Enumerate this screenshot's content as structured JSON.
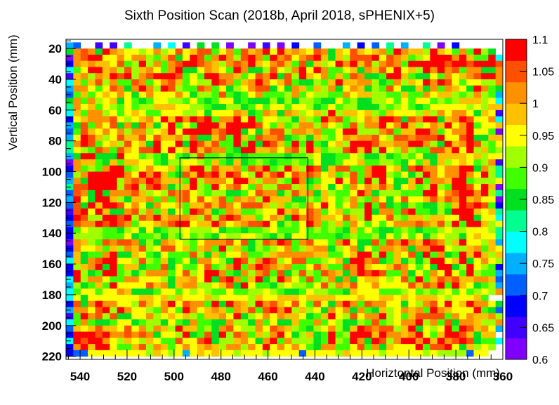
{
  "chart_data": {
    "type": "heatmap",
    "title": "Sixth Position Scan (2018b, April 2018, sPHENIX+5)",
    "xlabel": "Horiztontal Position (mm)",
    "ylabel": "Vertical Position (mm)",
    "x_axis": {
      "reversed": true,
      "range": [
        546,
        360
      ],
      "ticks": [
        540,
        520,
        500,
        480,
        460,
        440,
        420,
        400,
        380,
        360
      ]
    },
    "y_axis": {
      "reversed": true,
      "range": [
        14,
        222
      ],
      "ticks": [
        20,
        40,
        60,
        80,
        100,
        120,
        140,
        160,
        180,
        200,
        220
      ]
    },
    "color_scale": {
      "min": 0.6,
      "max": 1.1,
      "ticks": [
        "0.6",
        "0.65",
        "0.7",
        "0.75",
        "0.8",
        "0.85",
        "0.9",
        "0.95",
        "1",
        "1.05",
        "1.1"
      ],
      "palette": [
        "#8000ff",
        "#4000ff",
        "#0000ff",
        "#0060ff",
        "#00b0ff",
        "#00ffff",
        "#00ff90",
        "#00e020",
        "#40ff00",
        "#a0ff00",
        "#ffff00",
        "#ffc000",
        "#ff9000",
        "#ff5000",
        "#ff0000"
      ]
    },
    "grid": false,
    "grid_bins": {
      "x_start": 546,
      "x_step": 3.1,
      "nx": 60,
      "y_start": 16,
      "y_step": 4,
      "ny": 51
    },
    "rows": [
      "RN..F.F.W...P.U.G.Y.Z.C..D.G.B.J..M...O.J.N.V.R..W.A.K.....",
      "ZqvrbwqnkjgjphltjmvtdkqeunrxizoqoktqanjvoimscxsmnfynjdpcwgZ.",
      "CqvwxllqkrsgdntbiwvdrxqhuxsdxrtkrtwmbngvttwiuqncgjzwzsymcewS",
      "Jpnsomjvegygsdqtyzvsnfqtrwmjsvmcubmgkyrwmvgpvqcwxxzwuwyuywzt",
      "Sdiwznpgufnqidpwbbksmldxqbagujfpwiypedlnbqotlzjofwszptcqpbbr",
      "Fmsgqowvwhstyyztcjcwysqmdjtqxbvfznjqcmdtsaaexznebbkcsknsvwwr",
      "Umcmvgpcetpdlpumcjffwvqdnqzrimuebahenwnnrqhadrfmkwrytkdkkghr",
      "OpqjcjtrbqwsfwufccvqdibfkrtvbibpmdngsbksmbfdukaanapdsojbzpdY",
      "NenelmiqkakqjjkplbgfcuebeipdecfpdigfdepjmnhgeemcepjmmhdgpgcP",
      "ZpcphinbiebejkggdjdbcijaeabbhbhbfgdaaiegabghidjejjcfefmnnglU",
      "Vpjoejfejefhmomjjghcaafhadidjjcjjfaejcghbaahdhicacjiiklglgmo",
      "UmcsqhiekmkccikkhgjbjlisnbcpoapmfjogwgmokohcniiihmfrlpsiaojE",
      "JlnsprtlgkosjxnxsztycrrxjydkigfbmfcxqtehisnxwtbtrxwbnsytjkpS",
      "Obvcpivbpatnajyejezzwmwzyzulcndhrphrkgctfpqyiqyoglpnyjpzdkjm",
      "MdtniqkpfpqflnwlyzzzpuwzblanvufqpmpeeixxhhhsvdnoyyrclqsyjjeA",
      "Okxtmfkvomuktonqgvbbotdzodvsqtadfbofekrmppvlhvtqutvxkjvxaboo",
      "Wqwucjnhvkoawkjxbxvnvcdwczbztncxdxdbjnfzyyunnqpxxqgbzmrwvgcj",
      "Xjgdtpctmktuxkzinxmvprcayxmnrkpthynehfvznzgwkgqgdevumwkzfnef",
      "Obwxabbwljdhcajcbhuechacaecdcebedgibbccjfaafbdfdkbbmmnoimgjk",
      "CpnmcbnemniicahgijgcmcbmbehcaedhcdibbcjjnceggeaicnbmfimjcgqE",
      "KqegcqzycfisjkmcmxyftmorcvswchwnfzvboutcdryyjmbuwqskpqzxbpfW",
      "NfqzyxzwriwswoebtowuxoxvjfwovyltsvqiodfvdqwygdkbhxrjppysjzfV",
      "Oqaxzxyhrtqzvmnmdwfrqslywogrsgeyqbckixjtcxhwlbbnzdprnzzehhgk",
      "WuvzzzxhtwftxpafnxfcxjrtlepggvvfncnlbkdplsouoalmdfxhexzvlwmC",
      "LtqbzbsssunfjhtpujhefhaaeltppbfumsbnhedlwpbhfhedcxyjptzwqzhX",
      "PwjaywogbmmqdqeqtitjovdsmqfwnnnbahenjegqfeqjbjtjknuotpxnsjiA",
      "NuazozzvlsjarjloennvnvqkuvtmfmdfeqiyldkpcwcvadbgdbbhdoyvxvcK",
      "FvzjwnbbpugpdnaidxumbdpoccfikxnqkvrdlndfhwbrpcvwedahayzzojnV",
      "JzthfxztwfupwosqroftfuzunmclpmbypupmmlumfwjkvfeonhmmlkwzbjjS",
      "Mvqpwtwuqdkjmsvwylmmxqknrtuyiafdkwsegocplcjcjqrrvqmtfyczwogi",
      "HeiffdebgibiaeggihffjbeeaddfiecdiegcfcamdjcbaehebdefihgkkifV",
      "HhggfeccjbcefafdiegcaifgjigdbgbijdeedaeheefbjeidjbhigfbkmkkW",
      "CpnhevrtvpbgaqnkhcisppvluagtsyvcquijeqwiaaucvqxpnzvrhoziifoQ",
      "Jrijocofrovfkuujocmrewfncbhcglsdhnpqbfisbldsrnpbrpxykhhmsdmj",
      "Nmbedqwbbmlcaiedcuhbodiipdefopqsqsmmcelnyzhzcnivbxcqbdxmxnfm",
      "Unbsuxwllfugcnbekbrplhaxugswthluvdcfjmbzzrtacnbfbfyzkmwaiplh",
      "HhmpwbyeombeevaieekuefqwerxvsmqeekvnedtqwnkkotqjdkbzwbgwiheH",
      "HwgbczwcfafprrdkuhkwxrebqgrtcuahvhcvrmbqxuyucesaieqlzkcwfcdP",
      "TwhqrkeeqplikgbnnsjzbtypenwbgxsjctcgpbqaknmkfiueydmvrvmnpsoN",
      "OfbdmewljjiuorbnrrhfinvaxkedbfjfhdkvfsotkisljiitmvpwczmjbcgP",
      "Sckkcjjrnbbaeikeihkhdekechhjheaadighccamjikecdgiefdfkdjcfkhq",
      "Tjbkkkkjjlnnlohmiklofijklhmilmmokmnmmkjkmiknmkmlmmnlhkjknd..",
      "HtbsyqqiihuokqwjtqqeybwpohzptnitjctibqzsevqslibkfqtlzlozrqiZ",
      "RsqjvxfxpjihdqiewpkmsncqnvcuwqwhohlapjqaqcbngkpnrdxpnijiydaN",
      "Fcwruhvbbjlsgkokmfcnnskybhipipmmkbdnxifvkrsygjcnvvuudrjrnnrf",
      "Tcscbbeijbeghbicapcdbbpgfbpcjaamddpdlgbbhetcglqswhqdvasqmfgr",
      "NnlmunoitlqfsmgwomegbpuiffsktrnhdbgkrfbmyurutfnzaigkwcytnpkR",
      "Jwyzuzqqtpupbiifwbeubyhtrcmgswlbfmbexcfwyzmwpqmpykdowwtnbnn.",
      "UwtzzrigmjfnkedvijuzbfhoriaqwcshhgbcwgcxpawtgpwxszmwrvxvaedU",
      "Jqxnyzkdenugpmejpkopmhrphqixlsipidbrpeckudqanikiyduvzlamgkf.",
      "KNNjjkkjjjjhmkgkPlmimkkhjjlhijijNkkiihmkkjjhjjjkjhlhfhfNkk.."
    ],
    "selection_box": {
      "x": [
        497.5,
        443
      ],
      "y": [
        91,
        144
      ]
    }
  }
}
